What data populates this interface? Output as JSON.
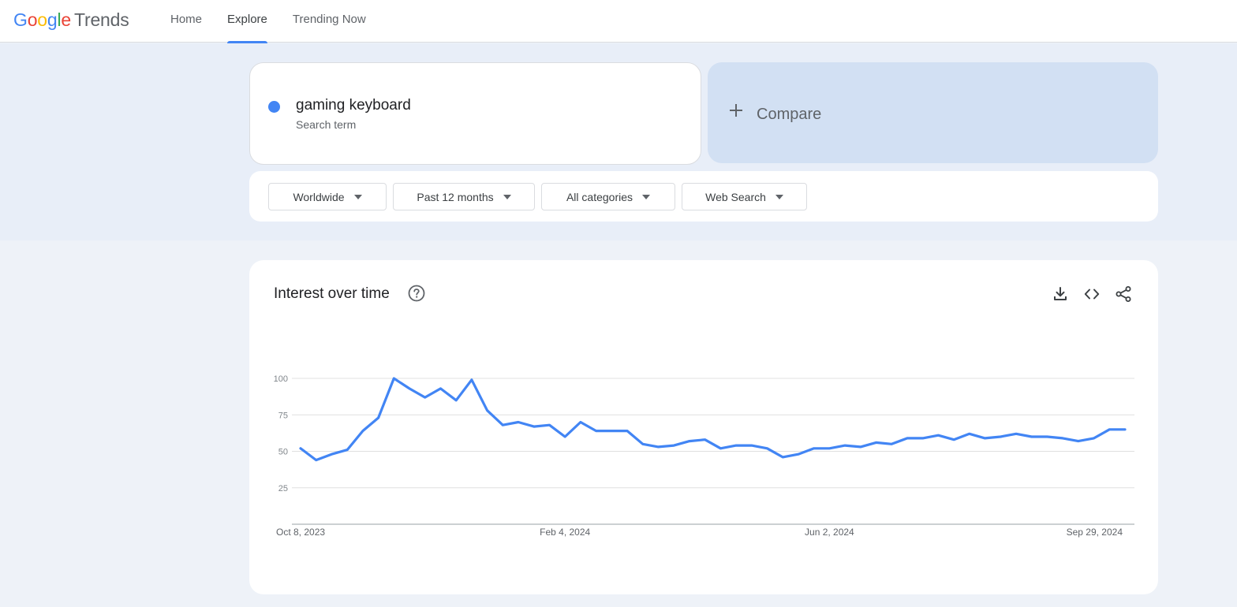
{
  "header": {
    "logo": {
      "g1": "G",
      "g2": "o",
      "g3": "o",
      "g4": "g",
      "g5": "l",
      "g6": "e",
      "product": "Trends"
    },
    "nav": [
      {
        "label": "Home",
        "active": false
      },
      {
        "label": "Explore",
        "active": true
      },
      {
        "label": "Trending Now",
        "active": false
      }
    ]
  },
  "search": {
    "term": "gaming keyboard",
    "term_type": "Search term",
    "term_color": "#4285f4",
    "compare_label": "Compare"
  },
  "filters": {
    "region": "Worldwide",
    "period": "Past 12 months",
    "category": "All categories",
    "property": "Web Search"
  },
  "chart_card": {
    "title": "Interest over time",
    "icons": [
      "help-icon",
      "download-icon",
      "embed-code-icon",
      "share-icon"
    ]
  },
  "chart_data": {
    "type": "line",
    "title": "Interest over time",
    "xlabel": "",
    "ylabel": "",
    "ylim": [
      0,
      100
    ],
    "yticks": [
      25,
      50,
      75,
      100
    ],
    "x_tick_labels": [
      "Oct 8, 2023",
      "Feb 4, 2024",
      "Jun 2, 2024",
      "Sep 29, 2024"
    ],
    "x_tick_indices": [
      0,
      17,
      34,
      51
    ],
    "grid": true,
    "series": [
      {
        "name": "gaming keyboard",
        "color": "#4285f4",
        "values": [
          52,
          44,
          48,
          51,
          64,
          73,
          100,
          93,
          87,
          93,
          85,
          99,
          78,
          68,
          70,
          67,
          68,
          60,
          70,
          64,
          64,
          64,
          55,
          53,
          54,
          57,
          58,
          52,
          54,
          54,
          52,
          46,
          48,
          52,
          52,
          54,
          53,
          56,
          55,
          59,
          59,
          61,
          58,
          62,
          59,
          60,
          62,
          60,
          60,
          59,
          57,
          59,
          65,
          65
        ]
      }
    ]
  }
}
